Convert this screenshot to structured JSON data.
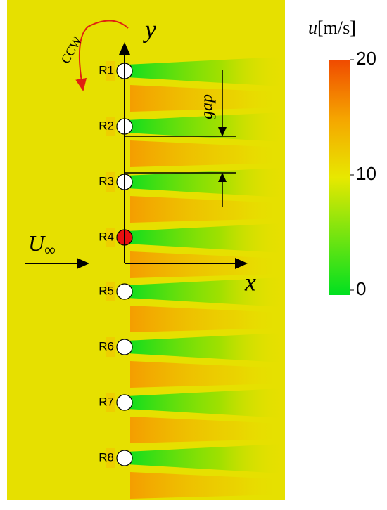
{
  "cylinders": [
    "R1",
    "R2",
    "R3",
    "R4",
    "R5",
    "R6",
    "R7",
    "R8"
  ],
  "axes": {
    "y": "y",
    "x": "x"
  },
  "gap": "gap",
  "rotation": "CCW",
  "inflow": {
    "symbol": "U",
    "subscript": "∞"
  },
  "colorbar": {
    "symbol": "u",
    "unit": "[m/s]",
    "lim": [
      0,
      20
    ],
    "ticks": [
      0,
      10,
      20
    ]
  }
}
